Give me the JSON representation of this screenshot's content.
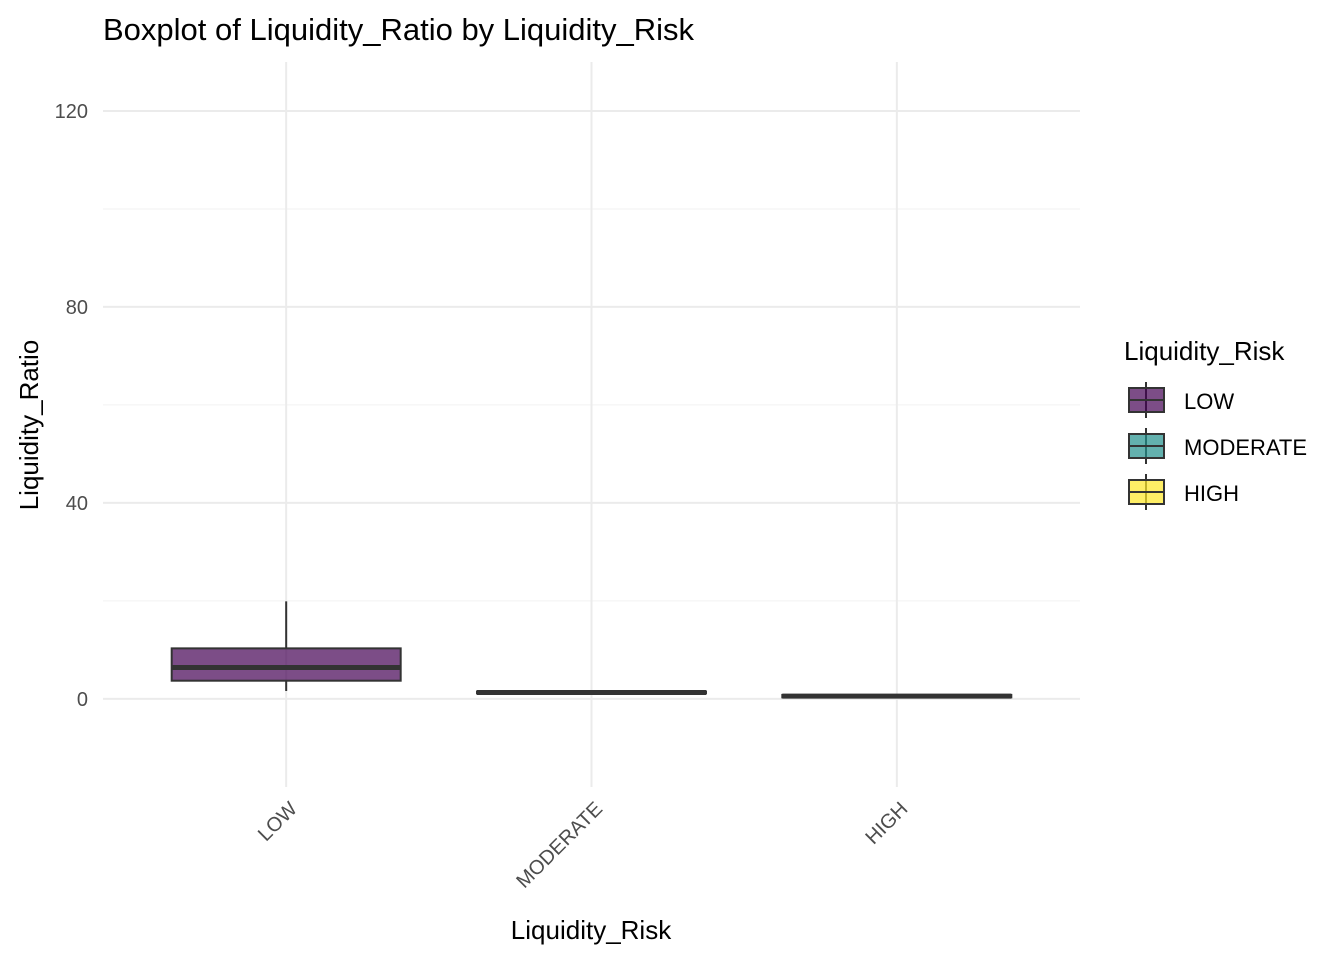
{
  "chart_data": {
    "type": "boxplot",
    "title": "Boxplot of Liquidity_Ratio by Liquidity_Risk",
    "xlabel": "Liquidity_Risk",
    "ylabel": "Liquidity_Ratio",
    "ylim": [
      -18,
      130
    ],
    "yticks": [
      0,
      40,
      80,
      120
    ],
    "categories": [
      "LOW",
      "MODERATE",
      "HIGH"
    ],
    "boxes": [
      {
        "category": "LOW",
        "q1": 3.7,
        "median": 6.4,
        "q3": 10.3,
        "whisker_low": 1.6,
        "whisker_high": 19.9,
        "color": "#440154"
      },
      {
        "category": "MODERATE",
        "q1": 1.1,
        "median": 1.3,
        "q3": 1.5,
        "whisker_low": 1.0,
        "whisker_high": 1.6,
        "color": "#21908C"
      },
      {
        "category": "HIGH",
        "q1": 0.3,
        "median": 0.55,
        "q3": 0.8,
        "whisker_low": 0.2,
        "whisker_high": 0.9,
        "color": "#FDE725"
      }
    ],
    "legend": {
      "title": "Liquidity_Risk",
      "position": "right",
      "items": [
        {
          "label": "LOW",
          "color": "#440154"
        },
        {
          "label": "MODERATE",
          "color": "#21908C"
        },
        {
          "label": "HIGH",
          "color": "#FDE725"
        }
      ]
    },
    "grid": true
  }
}
